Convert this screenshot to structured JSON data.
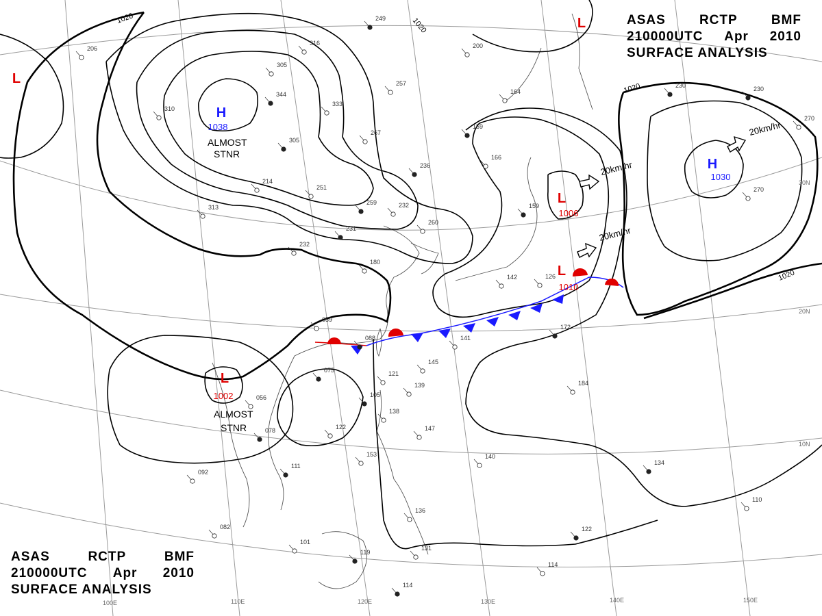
{
  "header": {
    "line1": [
      "ASAS",
      "RCTP",
      "BMF"
    ],
    "line2": [
      "210000UTC",
      "Apr",
      "2010"
    ],
    "line3": "SURFACE ANALYSIS"
  },
  "centers": [
    {
      "id": "high-north",
      "symbol": "H",
      "value": "1038",
      "color": "#1a1aff"
    },
    {
      "id": "high-east",
      "symbol": "H",
      "value": "1030",
      "color": "#1a1aff"
    },
    {
      "id": "low-japan",
      "symbol": "L",
      "value": "1006",
      "color": "#e00000"
    },
    {
      "id": "low-front",
      "symbol": "L",
      "value": "1010",
      "color": "#e00000"
    },
    {
      "id": "low-south",
      "symbol": "L",
      "value": "1002",
      "color": "#e00000"
    },
    {
      "id": "low-nw",
      "symbol": "L",
      "value": "",
      "color": "#e00000"
    },
    {
      "id": "low-ne",
      "symbol": "L",
      "value": "",
      "color": "#e00000"
    }
  ],
  "annotations": {
    "stnr_north_1": "ALMOST",
    "stnr_north_2": "STNR",
    "stnr_south_1": "ALMOST",
    "stnr_south_2": "STNR",
    "motion_1": "20km/hr",
    "motion_2": "20km/hr",
    "motion_3": "20km/hr"
  },
  "isobars": {
    "label_a": "1020",
    "label_b": "1020",
    "label_c": "1020",
    "label_d": "1020"
  },
  "grid_labels": {
    "lon": [
      "100E",
      "110E",
      "120E",
      "130E",
      "140E",
      "150E"
    ],
    "lat": [
      "30N",
      "20N",
      "10N"
    ]
  },
  "stations": [
    "249",
    "316",
    "305",
    "344",
    "333",
    "310",
    "305",
    "257",
    "267",
    "236",
    "214",
    "251",
    "259",
    "232",
    "313",
    "231",
    "260",
    "232",
    "159",
    "166",
    "164",
    "159",
    "142",
    "126",
    "230",
    "270",
    "270",
    "230",
    "180",
    "059",
    "088",
    "141",
    "145",
    "075",
    "121",
    "139",
    "105",
    "138",
    "056",
    "078",
    "122",
    "147",
    "172",
    "184",
    "092",
    "111",
    "153",
    "140",
    "134",
    "082",
    "101",
    "119",
    "136",
    "131",
    "122",
    "114",
    "110",
    "114",
    "200",
    "206"
  ],
  "colors": {
    "isobar": "#000000",
    "grid": "#9a9a9a",
    "coast": "#555555",
    "warm_front": "#e00000",
    "cold_front": "#1a1aff"
  }
}
